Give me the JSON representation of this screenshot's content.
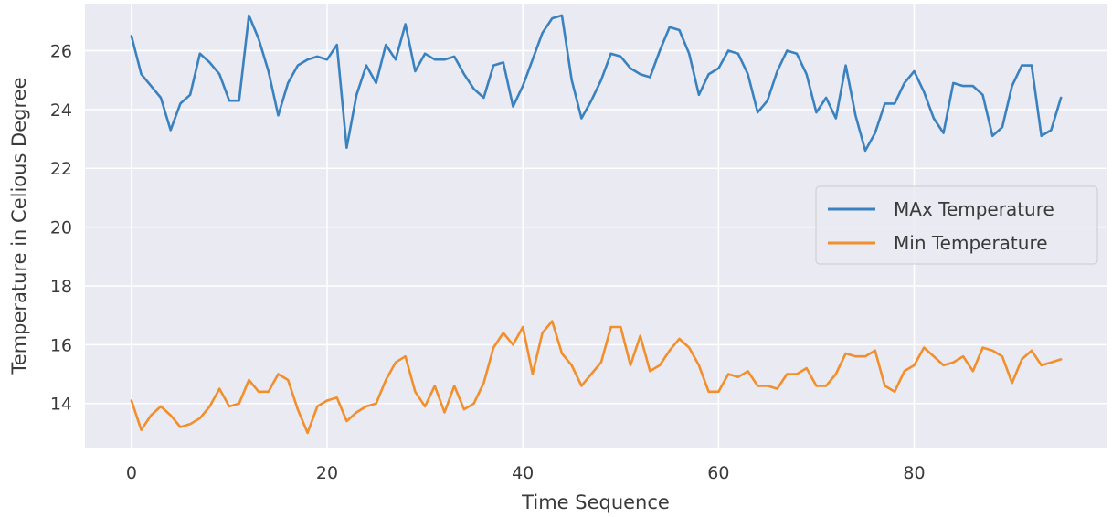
{
  "chart_data": {
    "type": "line",
    "title": "",
    "xlabel": "Time Sequence",
    "ylabel": "Temperature in Celious Degree",
    "xlim": [
      -4.75,
      99.75
    ],
    "ylim": [
      12.5,
      27.6
    ],
    "xticks": [
      0,
      20,
      40,
      60,
      80
    ],
    "yticks": [
      14,
      16,
      18,
      20,
      22,
      24,
      26
    ],
    "grid": true,
    "legend_position": "center-right",
    "x": [
      0,
      1,
      2,
      3,
      4,
      5,
      6,
      7,
      8,
      9,
      10,
      11,
      12,
      13,
      14,
      15,
      16,
      17,
      18,
      19,
      20,
      21,
      22,
      23,
      24,
      25,
      26,
      27,
      28,
      29,
      30,
      31,
      32,
      33,
      34,
      35,
      36,
      37,
      38,
      39,
      40,
      41,
      42,
      43,
      44,
      45,
      46,
      47,
      48,
      49,
      50,
      51,
      52,
      53,
      54,
      55,
      56,
      57,
      58,
      59,
      60,
      61,
      62,
      63,
      64,
      65,
      66,
      67,
      68,
      69,
      70,
      71,
      72,
      73,
      74,
      75,
      76,
      77,
      78,
      79,
      80,
      81,
      82,
      83,
      84,
      85,
      86,
      87,
      88,
      89,
      90,
      91,
      92,
      93,
      94,
      95
    ],
    "series": [
      {
        "name": "MAx Temperature",
        "color": "#3a82bf",
        "values": [
          26.5,
          25.2,
          24.8,
          24.4,
          23.3,
          24.2,
          24.5,
          25.9,
          25.6,
          25.2,
          24.3,
          24.3,
          27.2,
          26.4,
          25.3,
          23.8,
          24.9,
          25.5,
          25.7,
          25.8,
          25.7,
          26.2,
          22.7,
          24.5,
          25.5,
          24.9,
          26.2,
          25.7,
          26.9,
          25.3,
          25.9,
          25.7,
          25.7,
          25.8,
          25.2,
          24.7,
          24.4,
          25.5,
          25.6,
          24.1,
          24.8,
          25.7,
          26.6,
          27.1,
          27.2,
          25.0,
          23.7,
          24.3,
          25.0,
          25.9,
          25.8,
          25.4,
          25.2,
          25.1,
          26.0,
          26.8,
          26.7,
          25.9,
          24.5,
          25.2,
          25.4,
          26.0,
          25.9,
          25.2,
          23.9,
          24.3,
          25.3,
          26.0,
          25.9,
          25.2,
          23.9,
          24.4,
          23.7,
          25.5,
          23.8,
          22.6,
          23.2,
          24.2,
          24.2,
          24.9,
          25.3,
          24.6,
          23.7,
          23.2,
          24.9,
          24.8,
          24.8,
          24.5,
          23.1,
          23.4,
          24.8,
          25.5,
          25.5,
          23.1,
          23.3,
          24.4
        ]
      },
      {
        "name": "Min Temperature",
        "color": "#f18f2d",
        "values": [
          14.1,
          13.1,
          13.6,
          13.9,
          13.6,
          13.2,
          13.3,
          13.5,
          13.9,
          14.5,
          13.9,
          14.0,
          14.8,
          14.4,
          14.4,
          15.0,
          14.8,
          13.8,
          13.0,
          13.9,
          14.1,
          14.2,
          13.4,
          13.7,
          13.9,
          14.0,
          14.8,
          15.4,
          15.6,
          14.4,
          13.9,
          14.6,
          13.7,
          14.6,
          13.8,
          14.0,
          14.7,
          15.9,
          16.4,
          16.0,
          16.6,
          15.0,
          16.4,
          16.8,
          15.7,
          15.3,
          14.6,
          15.0,
          15.4,
          16.6,
          16.6,
          15.3,
          16.3,
          15.1,
          15.3,
          15.8,
          16.2,
          15.9,
          15.3,
          14.4,
          14.4,
          15.0,
          14.9,
          15.1,
          14.6,
          14.6,
          14.5,
          15.0,
          15.0,
          15.2,
          14.6,
          14.6,
          15.0,
          15.7,
          15.6,
          15.6,
          15.8,
          14.6,
          14.4,
          15.1,
          15.3,
          15.9,
          15.6,
          15.3,
          15.4,
          15.6,
          15.1,
          15.9,
          15.8,
          15.6,
          14.7,
          15.5,
          15.8,
          15.3,
          15.4,
          15.5
        ]
      }
    ]
  }
}
